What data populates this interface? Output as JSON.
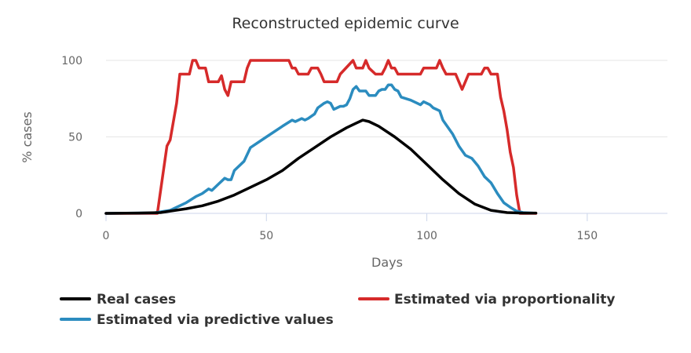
{
  "chart_data": {
    "type": "line",
    "title": "Reconstructed epidemic curve",
    "xlabel": "Days",
    "ylabel": "% cases",
    "xlim": [
      0,
      175
    ],
    "ylim": [
      0,
      100
    ],
    "x_ticks": [
      "0",
      "50",
      "100",
      "150"
    ],
    "y_ticks": [
      "0",
      "50",
      "100"
    ],
    "grid": "horizontal",
    "legend_position": "bottom",
    "colors": {
      "real": "#000000",
      "proportionality": "#d62a2a",
      "predictive": "#2b8cbf"
    },
    "series": [
      {
        "name": "Real cases",
        "color": "#000000",
        "points": [
          [
            0,
            0
          ],
          [
            10,
            0.2
          ],
          [
            17,
            0.5
          ],
          [
            20,
            1.5
          ],
          [
            25,
            3
          ],
          [
            30,
            5
          ],
          [
            35,
            8
          ],
          [
            40,
            12
          ],
          [
            45,
            17
          ],
          [
            50,
            22
          ],
          [
            55,
            28
          ],
          [
            60,
            36
          ],
          [
            65,
            43
          ],
          [
            70,
            50
          ],
          [
            75,
            56
          ],
          [
            78,
            59
          ],
          [
            80,
            61
          ],
          [
            82,
            60
          ],
          [
            85,
            57
          ],
          [
            90,
            50
          ],
          [
            95,
            42
          ],
          [
            100,
            32
          ],
          [
            105,
            22
          ],
          [
            110,
            13
          ],
          [
            115,
            6
          ],
          [
            120,
            2
          ],
          [
            125,
            0.5
          ],
          [
            130,
            0.2
          ],
          [
            134,
            0.2
          ]
        ]
      },
      {
        "name": "Estimated via proportionality",
        "color": "#d62a2a",
        "points": [
          [
            0,
            0
          ],
          [
            16,
            0
          ],
          [
            19,
            44
          ],
          [
            20,
            48
          ],
          [
            22,
            72
          ],
          [
            23,
            91
          ],
          [
            26,
            91
          ],
          [
            27,
            100
          ],
          [
            28,
            100
          ],
          [
            29,
            95
          ],
          [
            31,
            95
          ],
          [
            32,
            86
          ],
          [
            35,
            86
          ],
          [
            36,
            90
          ],
          [
            37,
            81
          ],
          [
            38,
            77
          ],
          [
            39,
            86
          ],
          [
            43,
            86
          ],
          [
            44,
            95
          ],
          [
            45,
            100
          ],
          [
            57,
            100
          ],
          [
            58,
            95
          ],
          [
            59,
            95
          ],
          [
            60,
            91
          ],
          [
            63,
            91
          ],
          [
            64,
            95
          ],
          [
            66,
            95
          ],
          [
            67,
            91
          ],
          [
            68,
            86
          ],
          [
            72,
            86
          ],
          [
            73,
            91
          ],
          [
            77,
            100
          ],
          [
            78,
            95
          ],
          [
            80,
            95
          ],
          [
            81,
            100
          ],
          [
            82,
            95
          ],
          [
            84,
            91
          ],
          [
            86,
            91
          ],
          [
            87,
            95
          ],
          [
            88,
            100
          ],
          [
            89,
            95
          ],
          [
            90,
            95
          ],
          [
            91,
            91
          ],
          [
            98,
            91
          ],
          [
            99,
            95
          ],
          [
            103,
            95
          ],
          [
            104,
            100
          ],
          [
            105,
            95
          ],
          [
            106,
            91
          ],
          [
            109,
            91
          ],
          [
            110,
            86
          ],
          [
            111,
            81
          ],
          [
            112,
            86
          ],
          [
            113,
            91
          ],
          [
            117,
            91
          ],
          [
            118,
            95
          ],
          [
            119,
            95
          ],
          [
            120,
            91
          ],
          [
            122,
            91
          ],
          [
            123,
            76
          ],
          [
            124,
            67
          ],
          [
            125,
            55
          ],
          [
            126,
            40
          ],
          [
            127,
            30
          ],
          [
            128,
            12
          ],
          [
            129,
            0
          ],
          [
            134,
            0
          ]
        ]
      },
      {
        "name": "Estimated via predictive values",
        "color": "#2b8cbf",
        "points": [
          [
            0,
            0
          ],
          [
            15,
            0.3
          ],
          [
            20,
            2
          ],
          [
            25,
            7
          ],
          [
            28,
            11
          ],
          [
            30,
            13
          ],
          [
            32,
            16
          ],
          [
            33,
            15
          ],
          [
            35,
            19
          ],
          [
            37,
            23
          ],
          [
            38,
            22
          ],
          [
            39,
            22
          ],
          [
            40,
            28
          ],
          [
            43,
            34
          ],
          [
            45,
            43
          ],
          [
            50,
            50
          ],
          [
            55,
            57
          ],
          [
            58,
            61
          ],
          [
            59,
            60
          ],
          [
            61,
            62
          ],
          [
            62,
            61
          ],
          [
            63,
            62
          ],
          [
            65,
            65
          ],
          [
            66,
            69
          ],
          [
            68,
            72
          ],
          [
            69,
            73
          ],
          [
            70,
            72
          ],
          [
            71,
            68
          ],
          [
            73,
            70
          ],
          [
            74,
            70
          ],
          [
            75,
            71
          ],
          [
            76,
            75
          ],
          [
            77,
            81
          ],
          [
            78,
            83
          ],
          [
            79,
            80
          ],
          [
            80,
            80
          ],
          [
            81,
            80
          ],
          [
            82,
            77
          ],
          [
            84,
            77
          ],
          [
            85,
            80
          ],
          [
            86,
            81
          ],
          [
            87,
            81
          ],
          [
            88,
            84
          ],
          [
            89,
            84
          ],
          [
            90,
            81
          ],
          [
            91,
            80
          ],
          [
            92,
            76
          ],
          [
            95,
            74
          ],
          [
            97,
            72
          ],
          [
            98,
            71
          ],
          [
            99,
            73
          ],
          [
            100,
            72
          ],
          [
            101,
            71
          ],
          [
            102,
            69
          ],
          [
            103,
            68
          ],
          [
            104,
            67
          ],
          [
            105,
            61
          ],
          [
            108,
            52
          ],
          [
            110,
            44
          ],
          [
            112,
            38
          ],
          [
            114,
            36
          ],
          [
            116,
            31
          ],
          [
            118,
            24
          ],
          [
            120,
            20
          ],
          [
            122,
            13
          ],
          [
            124,
            7
          ],
          [
            126,
            4
          ],
          [
            128,
            1.5
          ],
          [
            130,
            0.5
          ],
          [
            133,
            0.2
          ]
        ]
      }
    ]
  }
}
